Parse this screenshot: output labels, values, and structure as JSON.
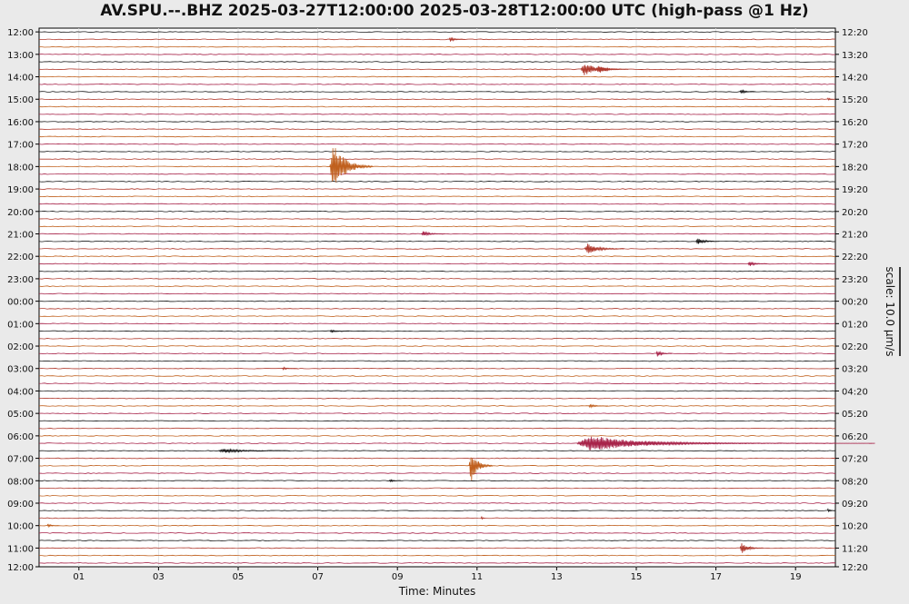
{
  "chart_data": {
    "type": "line",
    "title": "AV.SPU.--.BHZ 2025-03-27T12:00:00 2025-03-28T12:00:00 UTC (high-pass @1 Hz)",
    "xlabel": "Time: Minutes",
    "scale_label": "scale: 10.0 µm/s",
    "x_ticks": [
      "01",
      "03",
      "05",
      "07",
      "09",
      "11",
      "13",
      "15",
      "17",
      "19"
    ],
    "x_tick_values": [
      1,
      3,
      5,
      7,
      9,
      11,
      13,
      15,
      17,
      19
    ],
    "xlim": [
      0,
      20
    ],
    "rows_per_hour": 3,
    "row_count": 72,
    "left_labels": [
      "12:00",
      "13:00",
      "14:00",
      "15:00",
      "16:00",
      "17:00",
      "18:00",
      "19:00",
      "20:00",
      "21:00",
      "22:00",
      "23:00",
      "00:00",
      "01:00",
      "02:00",
      "03:00",
      "04:00",
      "05:00",
      "06:00",
      "07:00",
      "08:00",
      "09:00",
      "10:00",
      "11:00",
      "12:00"
    ],
    "right_labels": [
      "12:20",
      "13:20",
      "14:20",
      "15:20",
      "16:20",
      "17:20",
      "18:20",
      "19:20",
      "20:20",
      "21:20",
      "22:20",
      "23:20",
      "00:20",
      "01:20",
      "02:20",
      "03:20",
      "04:20",
      "05:20",
      "06:20",
      "07:20",
      "08:20",
      "09:20",
      "10:20",
      "11:20",
      "12:20"
    ],
    "trace_colors": [
      "#1a1a1a",
      "#b03a2e",
      "#c0601e",
      "#a8244a"
    ],
    "events": [
      {
        "row": 1,
        "minute": 10.3,
        "amp": 2.5,
        "duration": 0.4
      },
      {
        "row": 5,
        "minute": 13.6,
        "amp": 7,
        "duration": 1.2
      },
      {
        "row": 5,
        "minute": 14.0,
        "amp": 6,
        "duration": 0.6
      },
      {
        "row": 8,
        "minute": 17.6,
        "amp": 2.5,
        "duration": 0.4
      },
      {
        "row": 9,
        "minute": 19.8,
        "amp": 2,
        "duration": 0.2
      },
      {
        "row": 18,
        "minute": 7.3,
        "amp": 26,
        "duration": 1.1
      },
      {
        "row": 27,
        "minute": 9.6,
        "amp": 3,
        "duration": 0.6
      },
      {
        "row": 28,
        "minute": 16.5,
        "amp": 4,
        "duration": 0.6
      },
      {
        "row": 29,
        "minute": 13.7,
        "amp": 6,
        "duration": 1.0
      },
      {
        "row": 31,
        "minute": 17.8,
        "amp": 3,
        "duration": 0.5
      },
      {
        "row": 40,
        "minute": 7.3,
        "amp": 1.5,
        "duration": 0.5
      },
      {
        "row": 43,
        "minute": 15.5,
        "amp": 3.5,
        "duration": 0.4
      },
      {
        "row": 45,
        "minute": 6.1,
        "amp": 1.5,
        "duration": 0.4
      },
      {
        "row": 50,
        "minute": 13.8,
        "amp": 2,
        "duration": 0.5
      },
      {
        "row": 55,
        "minute": 13.5,
        "amp": 9,
        "duration": 4.5
      },
      {
        "row": 55,
        "minute": 13.5,
        "amp": 3,
        "duration": 7.5
      },
      {
        "row": 56,
        "minute": 4.5,
        "amp": 2.5,
        "duration": 1.8
      },
      {
        "row": 58,
        "minute": 10.8,
        "amp": 18,
        "duration": 0.6
      },
      {
        "row": 60,
        "minute": 8.8,
        "amp": 1.5,
        "duration": 0.3
      },
      {
        "row": 64,
        "minute": 19.8,
        "amp": 2,
        "duration": 0.2
      },
      {
        "row": 65,
        "minute": 11.1,
        "amp": 3,
        "duration": 0.1
      },
      {
        "row": 66,
        "minute": 0.2,
        "amp": 2,
        "duration": 0.3
      },
      {
        "row": 69,
        "minute": 17.6,
        "amp": 6,
        "duration": 0.6
      }
    ]
  }
}
